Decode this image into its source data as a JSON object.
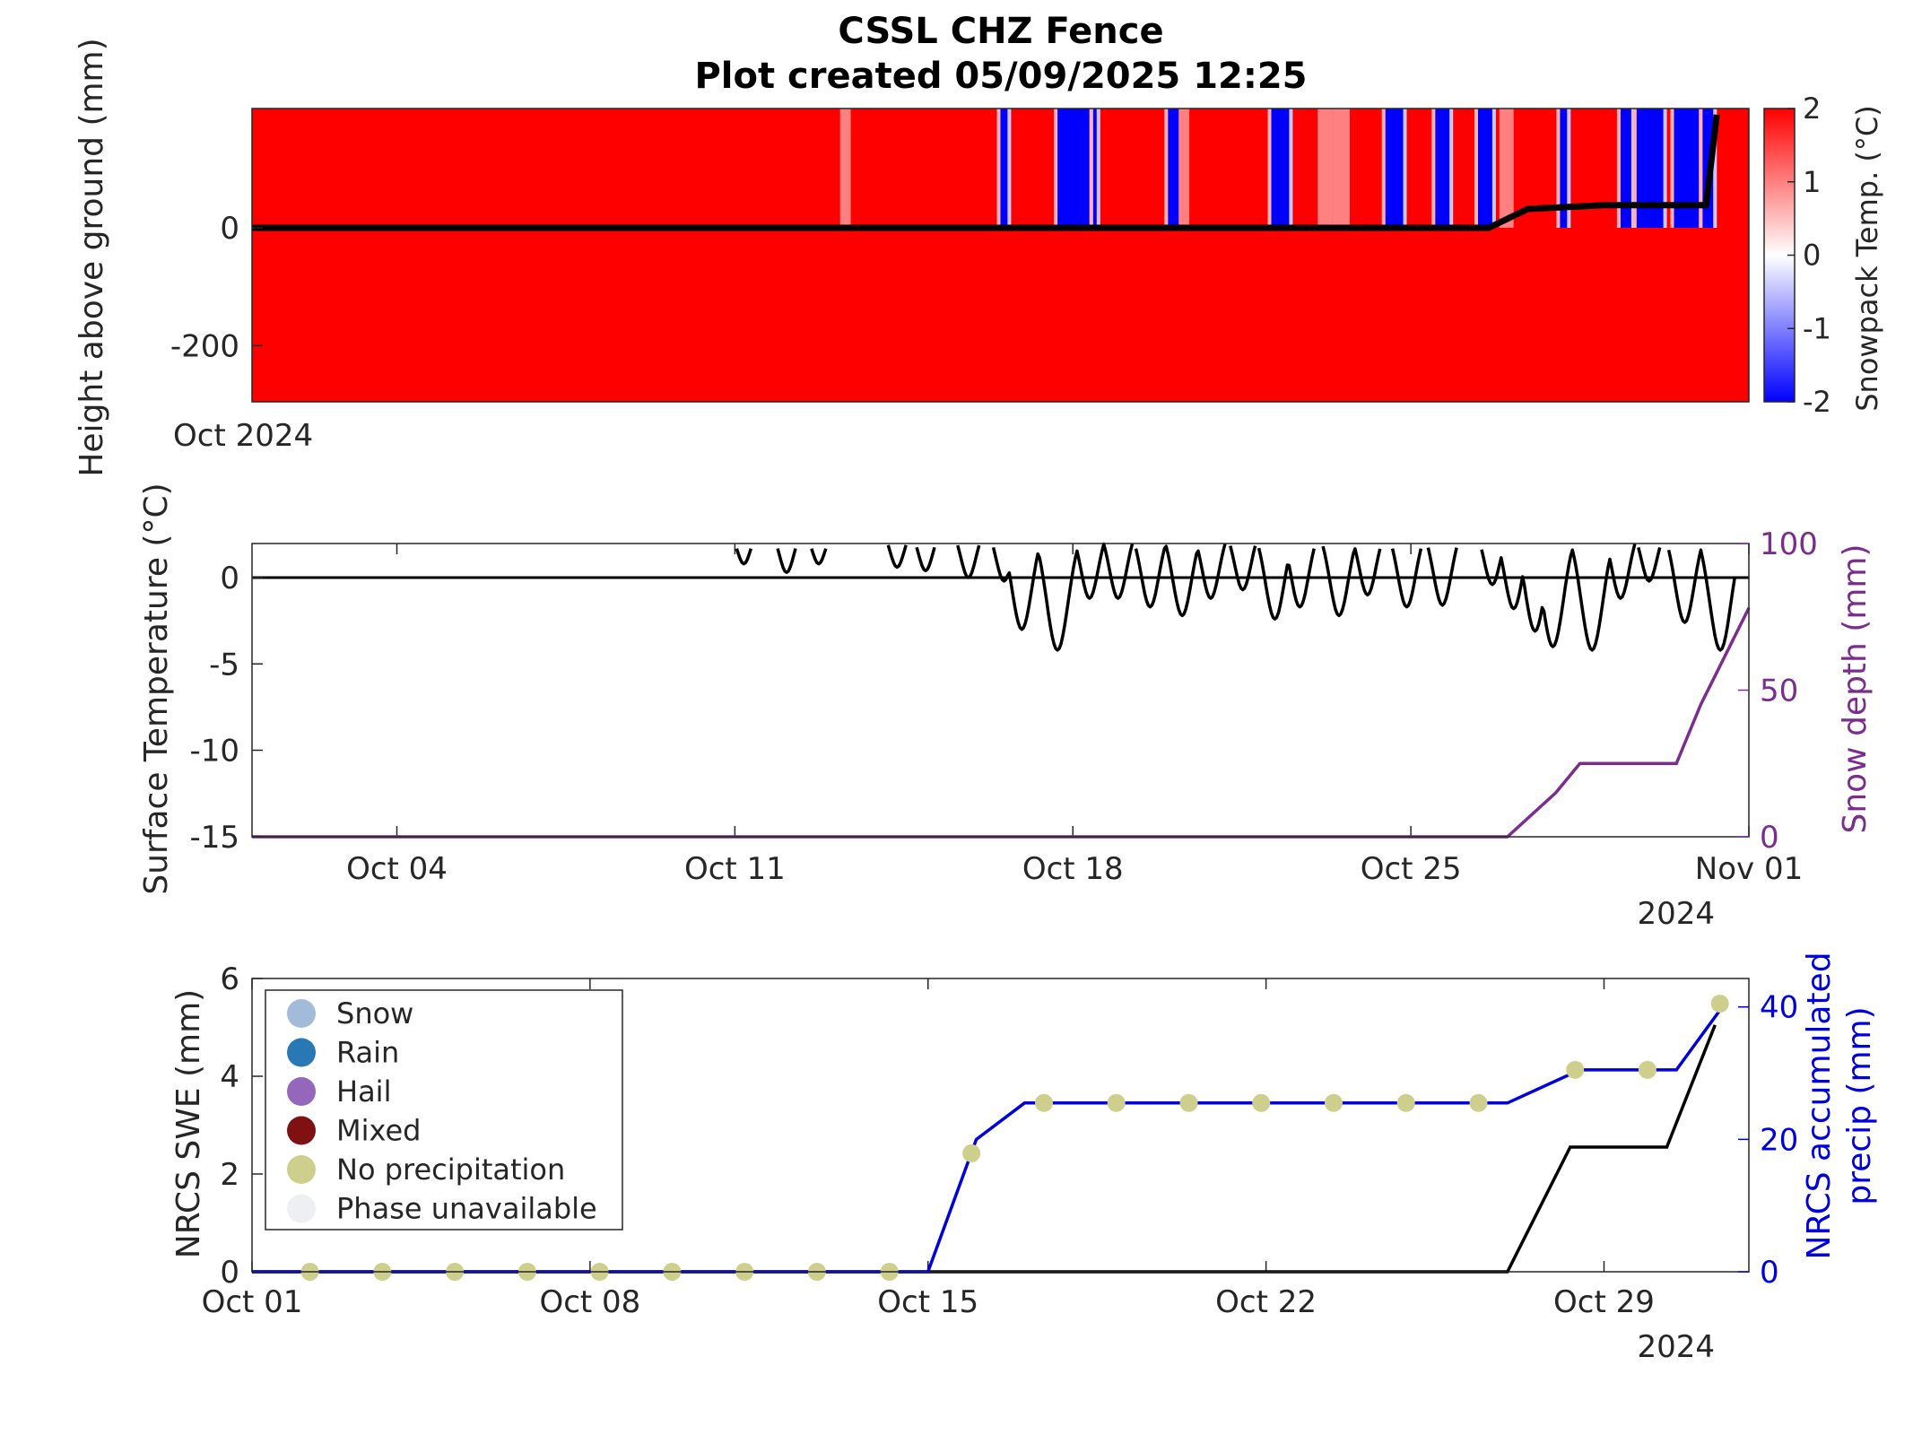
{
  "title": "CSSL CHZ Fence",
  "subtitle": "Plot created 05/09/2025 12:25",
  "colors": {
    "warm": "#ff0000",
    "cold": "#0000ff",
    "purple": "#7b2d8e",
    "precip": "#0000dd",
    "dot": "#cfcf8d"
  },
  "chart_data": [
    {
      "id": "snowpack_temperature",
      "type": "heatmap",
      "ylabel": "Height above ground (mm)",
      "yticks": [
        0,
        -200
      ],
      "ylim": [
        -300,
        200
      ],
      "x_tick_label": "Oct 2024",
      "colorbar": {
        "label": "Snowpack Temp. (°C)",
        "ticks": [
          2,
          1,
          0,
          -1,
          -2
        ],
        "range": [
          -2,
          2
        ]
      },
      "cold_bands_days": [
        [
          21.0,
          21.2
        ],
        [
          22.6,
          23.5
        ],
        [
          23.6,
          23.7
        ],
        [
          25.7,
          26.1
        ],
        [
          28.6,
          29.1
        ],
        [
          31.8,
          32.3
        ],
        [
          33.2,
          33.6
        ],
        [
          34.4,
          34.8
        ],
        [
          36.7,
          36.9
        ],
        [
          38.4,
          38.7
        ],
        [
          38.85,
          39.6
        ],
        [
          39.9,
          40.6
        ],
        [
          40.7,
          41.0
        ]
      ],
      "snow_surface": {
        "x_days": [
          0,
          34.7,
          35.8,
          37.9,
          38.6,
          40.8,
          41.1
        ],
        "y_mm": [
          0,
          0,
          10,
          12,
          12,
          12,
          60
        ]
      }
    },
    {
      "id": "surface_temperature",
      "type": "line",
      "ylabel": "Surface Temperature (°C)",
      "ylabel_right": "Snow depth (mm)",
      "ylim": [
        -15,
        2
      ],
      "yticks": [
        0,
        -5,
        -10,
        -15
      ],
      "ylim_right": [
        0,
        100
      ],
      "yticks_right": [
        100,
        50,
        0
      ],
      "xticks": [
        "Oct 04",
        "Oct 11",
        "Oct 18",
        "Oct 25",
        "Nov 01"
      ],
      "x_year": "2024",
      "snow_depth": {
        "x_days": [
          0,
          26,
          27,
          27.5,
          29.5,
          30,
          31
        ],
        "y_mm": [
          0,
          0,
          15,
          25,
          25,
          45,
          78
        ]
      }
    },
    {
      "id": "nrcs_swe_precip",
      "type": "line",
      "ylabel": "NRCS SWE (mm)",
      "ylabel_right": "NRCS accumulated precip (mm)",
      "ylim": [
        0,
        6
      ],
      "yticks": [
        6,
        4,
        2,
        0
      ],
      "ylim_right": [
        0,
        40
      ],
      "yticks_right": [
        40,
        20,
        0
      ],
      "xticks": [
        "Oct 01",
        "Oct 08",
        "Oct 15",
        "Oct 22",
        "Oct 29"
      ],
      "x_year": "2024",
      "legend": [
        "Snow",
        "Rain",
        "Hail",
        "Mixed",
        "No precipitation",
        "Phase unavailable"
      ],
      "legend_colors": [
        "#a3bbdb",
        "#2878b5",
        "#9467bd",
        "#7f1113",
        "#cfcf8d",
        "#eeeff2"
      ],
      "swe": {
        "x_days": [
          0,
          26,
          27.3,
          28.8,
          29.3,
          30.3
        ],
        "y_mm": [
          0,
          0,
          2.55,
          2.55,
          2.55,
          5.05
        ]
      },
      "precip": {
        "x_days": [
          0,
          14,
          15,
          16,
          18,
          26,
          27.5,
          29,
          29.5,
          30.5
        ],
        "y_mm": [
          0,
          0,
          20,
          25.5,
          25.5,
          25.5,
          30.5,
          30.5,
          30.5,
          40.5
        ]
      },
      "precip_dots": {
        "x_days": [
          1.2,
          2.7,
          4.2,
          5.7,
          7.2,
          8.7,
          10.2,
          11.7,
          13.2,
          14.9,
          16.4,
          17.9,
          19.4,
          20.9,
          22.4,
          23.9,
          25.4,
          27.4,
          28.9,
          30.4
        ],
        "y_mm": [
          0,
          0,
          0,
          0,
          0,
          0,
          0,
          0,
          0,
          17.9,
          25.5,
          25.5,
          25.5,
          25.5,
          25.5,
          25.5,
          25.5,
          30.5,
          30.5,
          40.5
        ],
        "phase": "No precipitation"
      }
    }
  ]
}
